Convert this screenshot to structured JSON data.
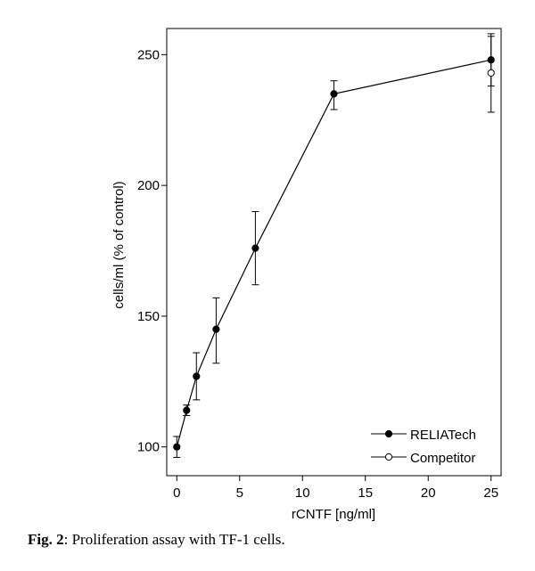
{
  "chart_data": {
    "type": "line",
    "xlabel": "rCNTF [ng/ml]",
    "ylabel": "cells/ml (% of control)",
    "xlim": [
      -0.8,
      25.8
    ],
    "ylim": [
      89,
      260
    ],
    "x_ticks": [
      0,
      5,
      10,
      15,
      20,
      25
    ],
    "y_ticks": [
      100,
      150,
      200,
      250
    ],
    "grid": false,
    "legend_position": "bottom-right",
    "series": [
      {
        "name": "RELIATech",
        "marker": "filled-circle",
        "line": true,
        "points": [
          {
            "x": 0,
            "y": 100,
            "err_low": 96,
            "err_high": 104
          },
          {
            "x": 0.78,
            "y": 114,
            "err_low": 112,
            "err_high": 116
          },
          {
            "x": 1.56,
            "y": 127,
            "err_low": 118,
            "err_high": 136
          },
          {
            "x": 3.13,
            "y": 145,
            "err_low": 132,
            "err_high": 157
          },
          {
            "x": 6.25,
            "y": 176,
            "err_low": 162,
            "err_high": 190
          },
          {
            "x": 12.5,
            "y": 235,
            "err_low": 229,
            "err_high": 240
          },
          {
            "x": 25,
            "y": 248,
            "err_low": 238,
            "err_high": 258
          }
        ]
      },
      {
        "name": "Competitor",
        "marker": "open-circle",
        "line": true,
        "points": [
          {
            "x": 25,
            "y": 243,
            "err_low": 228,
            "err_high": 257
          }
        ]
      }
    ]
  },
  "caption": {
    "label": "Fig. 2",
    "text": ": Proliferation assay with TF-1 cells."
  }
}
